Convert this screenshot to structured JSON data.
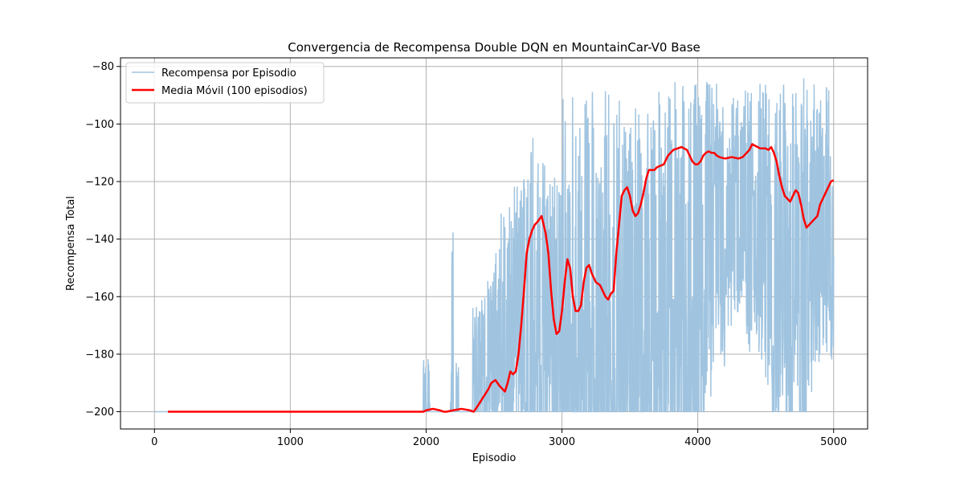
{
  "chart_data": {
    "type": "line",
    "title": "Convergencia de Recompensa Double DQN en MountainCar-V0 Base",
    "xlabel": "Episodio",
    "ylabel": "Recompensa Total",
    "xlim": [
      -250,
      5250
    ],
    "ylim": [
      -206,
      -77
    ],
    "xticks": [
      0,
      1000,
      2000,
      3000,
      4000,
      5000
    ],
    "yticks": [
      -200,
      -180,
      -160,
      -140,
      -120,
      -100,
      -80
    ],
    "grid": true,
    "legend_position": "top-left",
    "raw_series": {
      "name": "Recompensa por Episodio",
      "color": "#a0c4e0",
      "note_points": "per-episode reward envelope (min/max per window)",
      "bands": [
        [
          0,
          -200,
          -200
        ],
        [
          1975,
          -200,
          -200
        ],
        [
          1980,
          -200,
          -179
        ],
        [
          2000,
          -200,
          -200
        ],
        [
          2010,
          -200,
          -176
        ],
        [
          2030,
          -200,
          -200
        ],
        [
          2180,
          -200,
          -126
        ],
        [
          2200,
          -200,
          -200
        ],
        [
          2220,
          -200,
          -183
        ],
        [
          2240,
          -200,
          -200
        ],
        [
          2340,
          -200,
          -158
        ],
        [
          2400,
          -200,
          -157
        ],
        [
          2450,
          -200,
          -150
        ],
        [
          2500,
          -200,
          -140
        ],
        [
          2550,
          -200,
          -130
        ],
        [
          2600,
          -200,
          -122
        ],
        [
          2650,
          -200,
          -118
        ],
        [
          2700,
          -200,
          -113
        ],
        [
          2750,
          -200,
          -98
        ],
        [
          2800,
          -200,
          -112
        ],
        [
          2850,
          -200,
          -112
        ],
        [
          2900,
          -200,
          -115
        ],
        [
          2950,
          -200,
          -120
        ],
        [
          3000,
          -200,
          -86
        ],
        [
          3050,
          -200,
          -86
        ],
        [
          3100,
          -200,
          -88
        ],
        [
          3150,
          -200,
          -86
        ],
        [
          3200,
          -200,
          -84
        ],
        [
          3250,
          -200,
          -85
        ],
        [
          3300,
          -200,
          -86
        ],
        [
          3350,
          -200,
          -86
        ],
        [
          3400,
          -200,
          -86
        ],
        [
          3450,
          -200,
          -100
        ],
        [
          3500,
          -200,
          -90
        ],
        [
          3550,
          -200,
          -88
        ],
        [
          3600,
          -200,
          -96
        ],
        [
          3650,
          -200,
          -98
        ],
        [
          3700,
          -200,
          -84
        ],
        [
          3750,
          -200,
          -84
        ],
        [
          3800,
          -200,
          -84
        ],
        [
          3850,
          -200,
          -86
        ],
        [
          3900,
          -200,
          -85
        ],
        [
          3950,
          -200,
          -84
        ],
        [
          4000,
          -200,
          -86
        ],
        [
          4050,
          -195,
          -84
        ],
        [
          4100,
          -190,
          -86
        ],
        [
          4150,
          -185,
          -85
        ],
        [
          4200,
          -173,
          -84
        ],
        [
          4250,
          -170,
          -86
        ],
        [
          4300,
          -168,
          -84
        ],
        [
          4350,
          -180,
          -86
        ],
        [
          4400,
          -175,
          -84
        ],
        [
          4450,
          -185,
          -85
        ],
        [
          4500,
          -193,
          -84
        ],
        [
          4550,
          -200,
          -90
        ],
        [
          4600,
          -196,
          -86
        ],
        [
          4650,
          -200,
          -88
        ],
        [
          4700,
          -197,
          -86
        ],
        [
          4750,
          -200,
          -84
        ],
        [
          4800,
          -195,
          -86
        ],
        [
          4850,
          -190,
          -86
        ],
        [
          4900,
          -185,
          -86
        ],
        [
          4950,
          -184,
          -86
        ],
        [
          5000,
          -171,
          -83
        ]
      ]
    },
    "series": [
      {
        "name": "Media Móvil (100 episodios)",
        "color": "#ff0000",
        "x": [
          99,
          1980,
          2000,
          2050,
          2100,
          2130,
          2150,
          2200,
          2260,
          2320,
          2350,
          2380,
          2420,
          2460,
          2480,
          2510,
          2540,
          2560,
          2580,
          2600,
          2620,
          2640,
          2660,
          2680,
          2700,
          2720,
          2740,
          2760,
          2780,
          2800,
          2820,
          2850,
          2880,
          2900,
          2920,
          2940,
          2960,
          2980,
          3000,
          3020,
          3040,
          3060,
          3080,
          3100,
          3120,
          3140,
          3160,
          3180,
          3200,
          3220,
          3250,
          3280,
          3300,
          3320,
          3340,
          3360,
          3380,
          3400,
          3420,
          3440,
          3460,
          3480,
          3500,
          3520,
          3540,
          3560,
          3580,
          3600,
          3620,
          3640,
          3660,
          3680,
          3700,
          3750,
          3780,
          3800,
          3820,
          3850,
          3880,
          3900,
          3920,
          3940,
          3960,
          3980,
          4000,
          4020,
          4040,
          4060,
          4080,
          4100,
          4120,
          4140,
          4160,
          4200,
          4250,
          4300,
          4330,
          4360,
          4380,
          4400,
          4420,
          4440,
          4460,
          4480,
          4500,
          4520,
          4540,
          4560,
          4580,
          4600,
          4620,
          4640,
          4660,
          4680,
          4700,
          4720,
          4740,
          4760,
          4780,
          4800,
          4820,
          4840,
          4860,
          4880,
          4900,
          4920,
          4940,
          4960,
          4980,
          5000
        ],
        "y": [
          -200,
          -200,
          -199.5,
          -199,
          -199.5,
          -200,
          -200,
          -199.5,
          -199,
          -199.5,
          -200,
          -198,
          -195,
          -192,
          -190,
          -189,
          -191,
          -192,
          -193,
          -190,
          -186,
          -187,
          -186,
          -180,
          -170,
          -158,
          -145,
          -140,
          -137,
          -135,
          -134,
          -132,
          -138,
          -145,
          -158,
          -168,
          -173,
          -172,
          -165,
          -155,
          -147,
          -150,
          -160,
          -165,
          -165,
          -163,
          -155,
          -150,
          -149,
          -152,
          -155,
          -156,
          -158,
          -160,
          -161,
          -159,
          -158,
          -145,
          -135,
          -125,
          -123,
          -122,
          -125,
          -130,
          -132,
          -131,
          -128,
          -124,
          -119,
          -116,
          -116,
          -116,
          -115,
          -114,
          -111,
          -110,
          -109,
          -108.5,
          -108,
          -108.5,
          -109,
          -111,
          -113,
          -114,
          -114,
          -113,
          -111,
          -110,
          -109.5,
          -110,
          -110,
          -111,
          -111.5,
          -112,
          -111.5,
          -112,
          -111.5,
          -110,
          -109,
          -107,
          -107.5,
          -108,
          -108.5,
          -108.5,
          -108.5,
          -109,
          -108,
          -110,
          -113,
          -118,
          -122,
          -125,
          -126,
          -127,
          -125,
          -123,
          -124,
          -128,
          -133,
          -136,
          -135,
          -134,
          -133,
          -132,
          -128,
          -126,
          -124,
          -122,
          -120,
          -119.5
        ]
      }
    ]
  }
}
